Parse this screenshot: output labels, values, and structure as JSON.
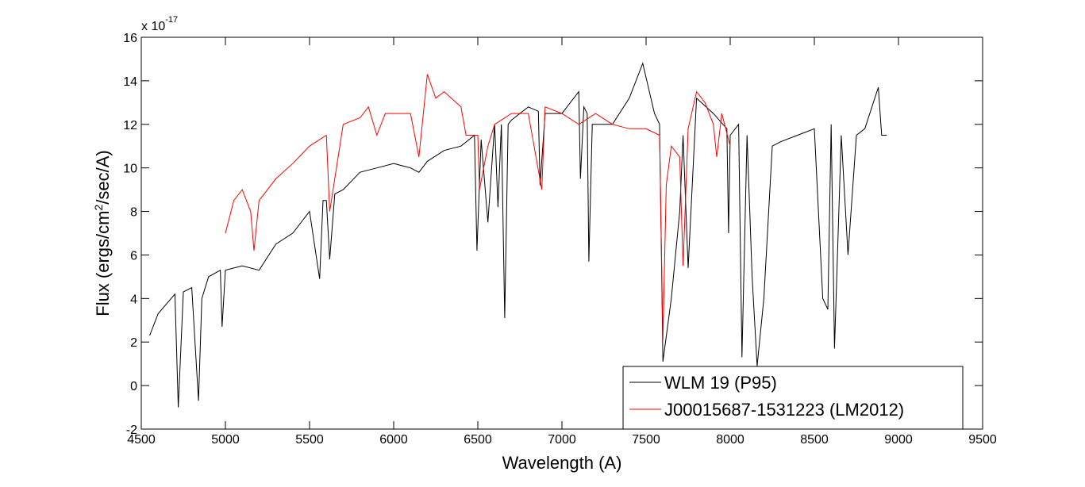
{
  "chart_data": {
    "type": "line",
    "xlabel": "Wavelength (A)",
    "ylabel": {
      "before": "Flux (ergs/cm",
      "sup": "2",
      "after": "/sec/A)"
    },
    "axis_multiplier": {
      "base": "x 10",
      "exponent": "-17"
    },
    "xlim": [
      4500,
      9500
    ],
    "xticks": [
      4500,
      5000,
      5500,
      6000,
      6500,
      7000,
      7500,
      8000,
      8500,
      9000,
      9500
    ],
    "ylim": [
      -2,
      16
    ],
    "yticks": [
      -2,
      0,
      2,
      4,
      6,
      8,
      10,
      12,
      14,
      16
    ],
    "legend": "lower right",
    "series": [
      {
        "name": "WLM 19 (P95)",
        "color": "#000000",
        "x": [
          4550,
          4600,
          4700,
          4720,
          4750,
          4800,
          4840,
          4860,
          4900,
          4970,
          4980,
          5000,
          5100,
          5200,
          5300,
          5400,
          5500,
          5560,
          5580,
          5600,
          5620,
          5650,
          5700,
          5800,
          5900,
          6000,
          6100,
          6150,
          6200,
          6300,
          6400,
          6480,
          6495,
          6520,
          6560,
          6600,
          6620,
          6640,
          6660,
          6680,
          6700,
          6800,
          6860,
          6870,
          6900,
          7000,
          7100,
          7110,
          7130,
          7150,
          7160,
          7180,
          7200,
          7300,
          7400,
          7480,
          7550,
          7580,
          7600,
          7650,
          7700,
          7720,
          7750,
          7800,
          7900,
          7980,
          7990,
          8000,
          8050,
          8070,
          8100,
          8130,
          8160,
          8200,
          8250,
          8300,
          8400,
          8500,
          8550,
          8580,
          8600,
          8620,
          8660,
          8700,
          8750,
          8800,
          8880,
          8900,
          8930
        ],
        "values": [
          2.3,
          3.3,
          4.2,
          -1.0,
          4.3,
          4.5,
          -0.7,
          4.0,
          5.0,
          5.3,
          2.7,
          5.3,
          5.5,
          5.3,
          6.5,
          7.0,
          8.0,
          4.9,
          8.5,
          8.5,
          5.8,
          8.8,
          9.0,
          9.8,
          10.0,
          10.2,
          10.0,
          9.8,
          10.3,
          10.8,
          11.0,
          11.5,
          6.2,
          11.3,
          7.5,
          12.0,
          8.2,
          12.0,
          3.1,
          12.0,
          12.2,
          12.8,
          12.6,
          9.2,
          12.5,
          12.5,
          13.5,
          9.5,
          12.8,
          12.5,
          5.7,
          12.0,
          12.0,
          12.0,
          13.2,
          14.8,
          12.5,
          12.0,
          1.1,
          4.0,
          8.0,
          11.5,
          5.4,
          13.2,
          12.5,
          11.8,
          7.0,
          11.5,
          12.0,
          1.3,
          11.5,
          5.0,
          0.9,
          4.0,
          11.0,
          11.2,
          11.5,
          11.8,
          4.0,
          3.5,
          12.0,
          1.7,
          11.5,
          6.0,
          11.5,
          11.8,
          13.7,
          11.5,
          11.5
        ]
      },
      {
        "name": "J00015687-1531223 (LM2012)",
        "color": "#ff0000",
        "x": [
          5000,
          5050,
          5100,
          5150,
          5170,
          5200,
          5300,
          5400,
          5500,
          5600,
          5620,
          5700,
          5800,
          5850,
          5900,
          5950,
          6100,
          6150,
          6200,
          6250,
          6300,
          6400,
          6430,
          6500,
          6510,
          6560,
          6600,
          6700,
          6800,
          6880,
          6900,
          7000,
          7100,
          7200,
          7300,
          7400,
          7500,
          7580,
          7600,
          7620,
          7650,
          7700,
          7720,
          7750,
          7800,
          7850,
          7900,
          7920,
          7950,
          8000
        ],
        "values": [
          7.0,
          8.5,
          9.0,
          8.0,
          6.2,
          8.5,
          9.5,
          10.2,
          11.0,
          11.5,
          8.0,
          12.0,
          12.3,
          12.8,
          11.5,
          12.5,
          12.5,
          10.5,
          14.3,
          13.2,
          13.5,
          12.8,
          11.5,
          11.5,
          9.0,
          11.0,
          12.0,
          12.5,
          12.5,
          9.0,
          12.8,
          12.5,
          12.0,
          12.5,
          12.0,
          11.8,
          11.8,
          11.5,
          2.1,
          9.2,
          11.0,
          10.5,
          5.5,
          11.8,
          13.5,
          13.0,
          12.0,
          10.5,
          12.5,
          11.0
        ]
      }
    ]
  }
}
